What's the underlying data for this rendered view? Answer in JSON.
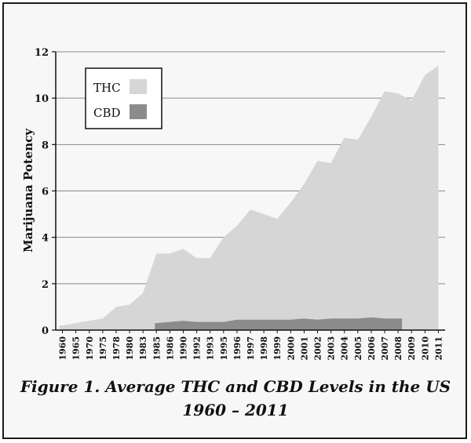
{
  "caption": {
    "line1": "Figure 1. Average THC and CBD Levels in the US",
    "line2": "1960 – 2011"
  },
  "colors": {
    "thc": "#d6d6d6",
    "cbd": "#8c8c8c",
    "grid": "#888888",
    "background": "#f7f7f7"
  },
  "chart_data": {
    "type": "area",
    "title": "",
    "xlabel": "",
    "ylabel": "Marijuana Potency",
    "ylim": [
      0,
      12
    ],
    "yticks": [
      0,
      2,
      4,
      6,
      8,
      10,
      12
    ],
    "grid": true,
    "legend_placement": "top-left",
    "categories": [
      "1960",
      "1965",
      "1970",
      "1975",
      "1978",
      "1980",
      "1983",
      "1985",
      "1986",
      "1990",
      "1992",
      "1993",
      "1995",
      "1996",
      "1997",
      "1998",
      "1999",
      "2000",
      "2001",
      "2002",
      "2003",
      "2004",
      "2005",
      "2006",
      "2007",
      "2008",
      "2009",
      "2010",
      "2011"
    ],
    "series": [
      {
        "name": "THC",
        "values": [
          0.2,
          0.3,
          0.4,
          0.5,
          1.0,
          1.1,
          1.6,
          3.3,
          3.3,
          3.5,
          3.1,
          3.1,
          4.0,
          4.5,
          5.2,
          5.0,
          4.8,
          5.5,
          6.3,
          7.3,
          7.2,
          8.3,
          8.2,
          9.2,
          10.3,
          10.2,
          9.9,
          11.0,
          11.4
        ]
      },
      {
        "name": "CBD",
        "values": [
          null,
          null,
          null,
          null,
          null,
          null,
          null,
          0.3,
          0.35,
          0.4,
          0.35,
          0.35,
          0.35,
          0.45,
          0.45,
          0.45,
          0.45,
          0.45,
          0.5,
          0.45,
          0.5,
          0.5,
          0.5,
          0.55,
          0.5,
          0.5,
          null,
          null,
          null
        ]
      }
    ]
  }
}
